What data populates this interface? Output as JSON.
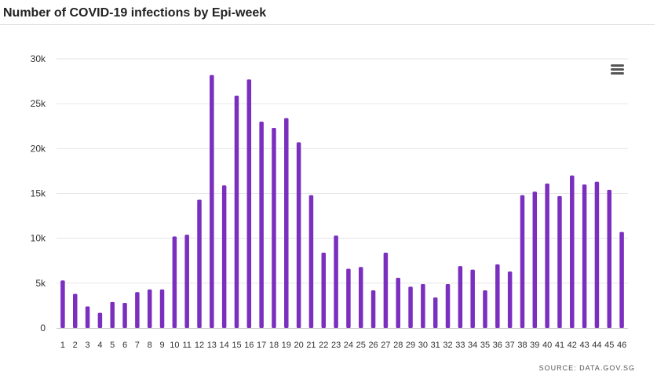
{
  "header": {
    "title": "Number of COVID-19 infections by Epi-week"
  },
  "footer": {
    "source": "SOURCE: DATA.GOV.SG"
  },
  "icons": {
    "menu": "hamburger-menu-icon"
  },
  "colors": {
    "bar": "#7b2fbe",
    "grid": "#e6e6e6",
    "axis": "#cccccc",
    "text": "#333333"
  },
  "chart_data": {
    "type": "bar",
    "title": "Number of COVID-19 infections by Epi-week",
    "xlabel": "",
    "ylabel": "",
    "ylim": [
      0,
      30000
    ],
    "yticks": [
      0,
      5000,
      10000,
      15000,
      20000,
      25000,
      30000
    ],
    "ytick_labels": [
      "0",
      "5k",
      "10k",
      "15k",
      "20k",
      "25k",
      "30k"
    ],
    "categories": [
      "1",
      "2",
      "3",
      "4",
      "5",
      "6",
      "7",
      "8",
      "9",
      "10",
      "11",
      "12",
      "13",
      "14",
      "15",
      "16",
      "17",
      "18",
      "19",
      "20",
      "21",
      "22",
      "23",
      "24",
      "25",
      "26",
      "27",
      "28",
      "29",
      "30",
      "31",
      "32",
      "33",
      "34",
      "35",
      "36",
      "37",
      "38",
      "39",
      "40",
      "41",
      "42",
      "43",
      "44",
      "45",
      "46"
    ],
    "values": [
      5300,
      3800,
      2400,
      1700,
      2900,
      2800,
      4000,
      4300,
      4300,
      10200,
      10400,
      14300,
      28200,
      15900,
      25900,
      27700,
      23000,
      22300,
      23400,
      20700,
      14800,
      8400,
      10300,
      6600,
      6800,
      4200,
      8400,
      5600,
      4600,
      4900,
      3400,
      4900,
      6900,
      6500,
      4200,
      7100,
      6300,
      14800,
      15200,
      16100,
      14700,
      17000,
      16000,
      16300,
      15400,
      10700
    ],
    "grid": true,
    "legend": "none"
  }
}
